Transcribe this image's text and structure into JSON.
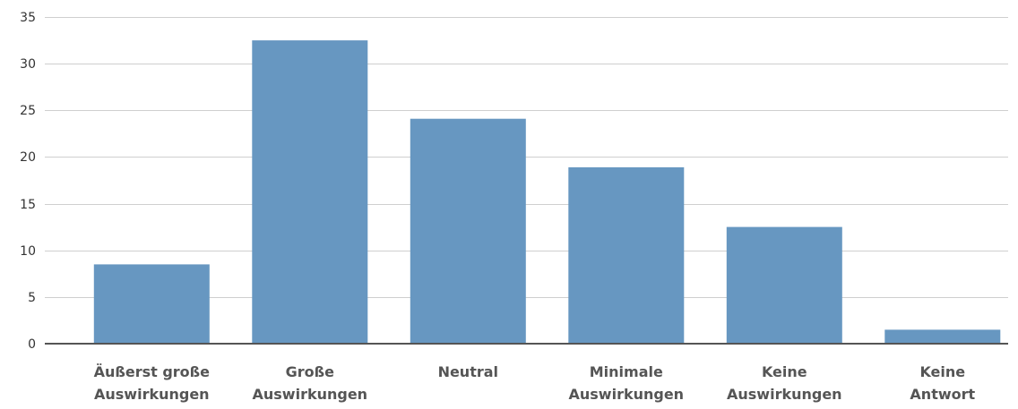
{
  "chart_data": {
    "type": "bar",
    "title": "",
    "xlabel": "",
    "ylabel": "",
    "categories": [
      [
        "Äußerst große",
        "Auswirkungen"
      ],
      [
        "Große",
        "Auswirkungen"
      ],
      [
        "Neutral"
      ],
      [
        "Minimale",
        "Auswirkungen"
      ],
      [
        "Keine",
        "Auswirkungen"
      ],
      [
        "Keine",
        "Antwort"
      ]
    ],
    "values": [
      8.5,
      32.5,
      24.1,
      18.9,
      12.5,
      1.5
    ],
    "ylim": [
      0,
      35
    ],
    "yticks": [
      0,
      5,
      10,
      15,
      20,
      25,
      30,
      35
    ],
    "grid": true,
    "legend": "none",
    "colors": {
      "bar": "#6797c1",
      "grid": "#cfcfcf",
      "axis": "#555555"
    }
  }
}
